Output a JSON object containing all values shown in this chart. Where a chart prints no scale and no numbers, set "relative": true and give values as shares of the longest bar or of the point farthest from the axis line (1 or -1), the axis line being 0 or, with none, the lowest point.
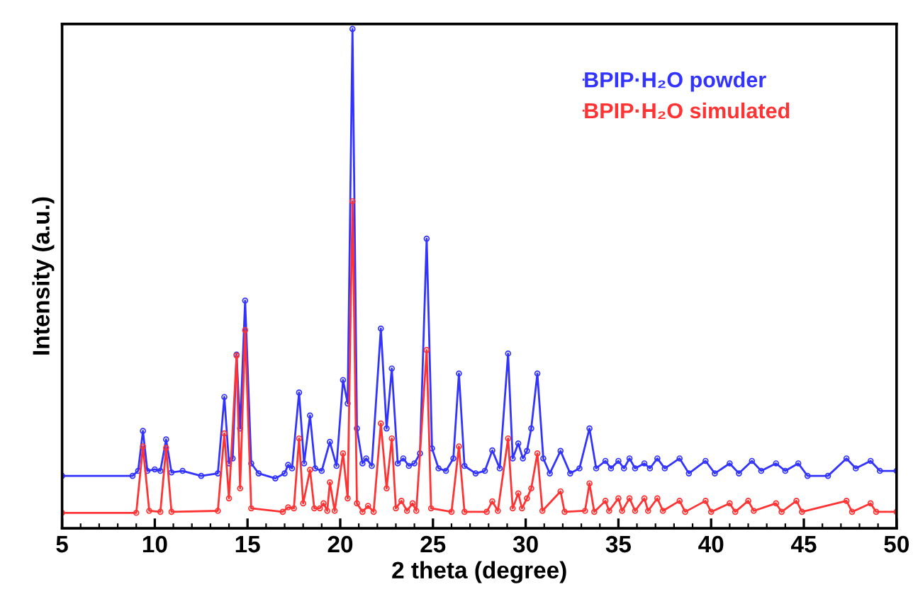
{
  "chart_data": {
    "type": "line",
    "xlabel": "2 theta (degree)",
    "ylabel": "Intensity (a.u.)",
    "relative": true,
    "tick_labels": "x",
    "grid": false,
    "legend": "top right",
    "marker": "circle",
    "line_style": "solid",
    "xlim": [
      5,
      50
    ],
    "xticks": [
      5,
      {
        "value": 6,
        "label": null
      },
      {
        "value": 7,
        "label": null
      },
      {
        "value": 8,
        "label": null
      },
      {
        "value": 9,
        "label": null
      },
      10,
      {
        "value": 11,
        "label": null
      },
      {
        "value": 12,
        "label": null
      },
      {
        "value": 13,
        "label": null
      },
      {
        "value": 14,
        "label": null
      },
      15,
      {
        "value": 16,
        "label": null
      },
      {
        "value": 17,
        "label": null
      },
      {
        "value": 18,
        "label": null
      },
      {
        "value": 19,
        "label": null
      },
      20,
      {
        "value": 21,
        "label": null
      },
      {
        "value": 22,
        "label": null
      },
      {
        "value": 23,
        "label": null
      },
      {
        "value": 24,
        "label": null
      },
      25,
      {
        "value": 26,
        "label": null
      },
      {
        "value": 27,
        "label": null
      },
      {
        "value": 28,
        "label": null
      },
      {
        "value": 29,
        "label": null
      },
      30,
      {
        "value": 31,
        "label": null
      },
      {
        "value": 32,
        "label": null
      },
      {
        "value": 33,
        "label": null
      },
      {
        "value": 34,
        "label": null
      },
      35,
      {
        "value": 36,
        "label": null
      },
      {
        "value": 37,
        "label": null
      },
      {
        "value": 38,
        "label": null
      },
      {
        "value": 39,
        "label": null
      },
      40,
      {
        "value": 41,
        "label": null
      },
      {
        "value": 42,
        "label": null
      },
      {
        "value": 43,
        "label": null
      },
      {
        "value": 44,
        "label": null
      },
      45,
      {
        "value": 46,
        "label": null
      },
      {
        "value": 47,
        "label": null
      },
      {
        "value": 48,
        "label": null
      },
      {
        "value": 49,
        "label": null
      },
      50
    ],
    "series": [
      {
        "name": "BPIP·H₂O powder",
        "color": "#3333ff",
        "x": [
          5,
          8.8,
          9.1,
          9.36,
          9.6,
          10.0,
          10.3,
          10.61,
          10.9,
          11.5,
          12.5,
          13.4,
          13.75,
          14.0,
          14.2,
          14.41,
          14.6,
          14.87,
          15.2,
          15.6,
          16.5,
          17.0,
          17.19,
          17.4,
          17.78,
          18.05,
          18.37,
          18.65,
          19.0,
          19.44,
          19.8,
          20.15,
          20.4,
          20.66,
          20.9,
          21.2,
          21.4,
          21.7,
          22.19,
          22.5,
          22.78,
          23.1,
          23.4,
          23.7,
          24.0,
          24.3,
          24.66,
          24.95,
          25.3,
          25.7,
          26.1,
          26.4,
          26.7,
          27.3,
          27.8,
          28.2,
          28.6,
          29.05,
          29.3,
          29.6,
          29.85,
          30.07,
          30.3,
          30.63,
          30.95,
          31.3,
          31.88,
          32.4,
          32.9,
          33.44,
          33.8,
          34.3,
          34.6,
          35.0,
          35.3,
          35.6,
          35.9,
          36.4,
          36.7,
          37.1,
          37.5,
          38.3,
          38.8,
          39.7,
          40.2,
          41.0,
          41.5,
          42.2,
          42.7,
          43.5,
          44.0,
          44.7,
          45.2,
          46.3,
          47.3,
          47.8,
          48.6,
          49.1,
          50
        ],
        "values": [
          0.105,
          0.105,
          0.115,
          0.195,
          0.115,
          0.118,
          0.115,
          0.178,
          0.112,
          0.115,
          0.105,
          0.11,
          0.263,
          0.13,
          0.14,
          0.348,
          0.2,
          0.456,
          0.13,
          0.11,
          0.1,
          0.11,
          0.127,
          0.12,
          0.272,
          0.13,
          0.226,
          0.12,
          0.115,
          0.173,
          0.125,
          0.297,
          0.25,
          1.0,
          0.2,
          0.13,
          0.14,
          0.125,
          0.4,
          0.2,
          0.32,
          0.13,
          0.14,
          0.125,
          0.13,
          0.15,
          0.58,
          0.16,
          0.12,
          0.115,
          0.14,
          0.31,
          0.125,
          0.11,
          0.115,
          0.156,
          0.12,
          0.35,
          0.14,
          0.17,
          0.14,
          0.155,
          0.2,
          0.31,
          0.14,
          0.11,
          0.155,
          0.11,
          0.12,
          0.2,
          0.12,
          0.135,
          0.12,
          0.135,
          0.12,
          0.14,
          0.12,
          0.13,
          0.12,
          0.14,
          0.12,
          0.14,
          0.11,
          0.135,
          0.11,
          0.13,
          0.11,
          0.135,
          0.115,
          0.13,
          0.115,
          0.13,
          0.105,
          0.105,
          0.14,
          0.12,
          0.135,
          0.115,
          0.115
        ]
      },
      {
        "name": "BPIP·H₂O simulated",
        "color": "#ff3333",
        "x": [
          5,
          9.0,
          9.36,
          9.7,
          10.3,
          10.61,
          10.9,
          13.4,
          13.75,
          14.0,
          14.41,
          14.6,
          14.87,
          15.2,
          16.9,
          17.19,
          17.5,
          17.78,
          18.0,
          18.37,
          18.6,
          18.9,
          19.1,
          19.3,
          19.44,
          19.7,
          20.15,
          20.4,
          20.66,
          20.9,
          21.2,
          21.5,
          21.8,
          22.19,
          22.5,
          22.78,
          23.0,
          23.3,
          23.6,
          23.9,
          24.1,
          24.66,
          24.9,
          26.0,
          26.4,
          26.7,
          27.9,
          28.2,
          28.5,
          29.05,
          29.3,
          29.6,
          29.8,
          30.07,
          30.3,
          30.63,
          30.9,
          31.88,
          32.1,
          33.2,
          33.44,
          33.7,
          34.3,
          34.5,
          35.0,
          35.2,
          35.6,
          35.9,
          36.4,
          36.6,
          37.1,
          37.4,
          38.3,
          38.6,
          39.7,
          40.0,
          41.0,
          41.3,
          42.0,
          42.3,
          43.5,
          43.8,
          44.6,
          44.9,
          47.3,
          47.6,
          48.6,
          48.9,
          50
        ],
        "values": [
          0.031,
          0.031,
          0.164,
          0.035,
          0.033,
          0.161,
          0.033,
          0.035,
          0.19,
          0.06,
          0.346,
          0.08,
          0.397,
          0.04,
          0.033,
          0.042,
          0.04,
          0.18,
          0.05,
          0.117,
          0.04,
          0.04,
          0.05,
          0.035,
          0.092,
          0.035,
          0.15,
          0.06,
          0.655,
          0.05,
          0.033,
          0.045,
          0.033,
          0.21,
          0.08,
          0.18,
          0.04,
          0.055,
          0.035,
          0.05,
          0.035,
          0.357,
          0.04,
          0.033,
          0.164,
          0.033,
          0.033,
          0.054,
          0.035,
          0.18,
          0.04,
          0.07,
          0.04,
          0.06,
          0.08,
          0.15,
          0.035,
          0.074,
          0.033,
          0.035,
          0.09,
          0.033,
          0.055,
          0.035,
          0.06,
          0.035,
          0.06,
          0.035,
          0.06,
          0.035,
          0.06,
          0.035,
          0.055,
          0.033,
          0.055,
          0.033,
          0.05,
          0.033,
          0.055,
          0.035,
          0.05,
          0.033,
          0.055,
          0.033,
          0.055,
          0.033,
          0.05,
          0.033,
          0.033
        ]
      }
    ]
  }
}
